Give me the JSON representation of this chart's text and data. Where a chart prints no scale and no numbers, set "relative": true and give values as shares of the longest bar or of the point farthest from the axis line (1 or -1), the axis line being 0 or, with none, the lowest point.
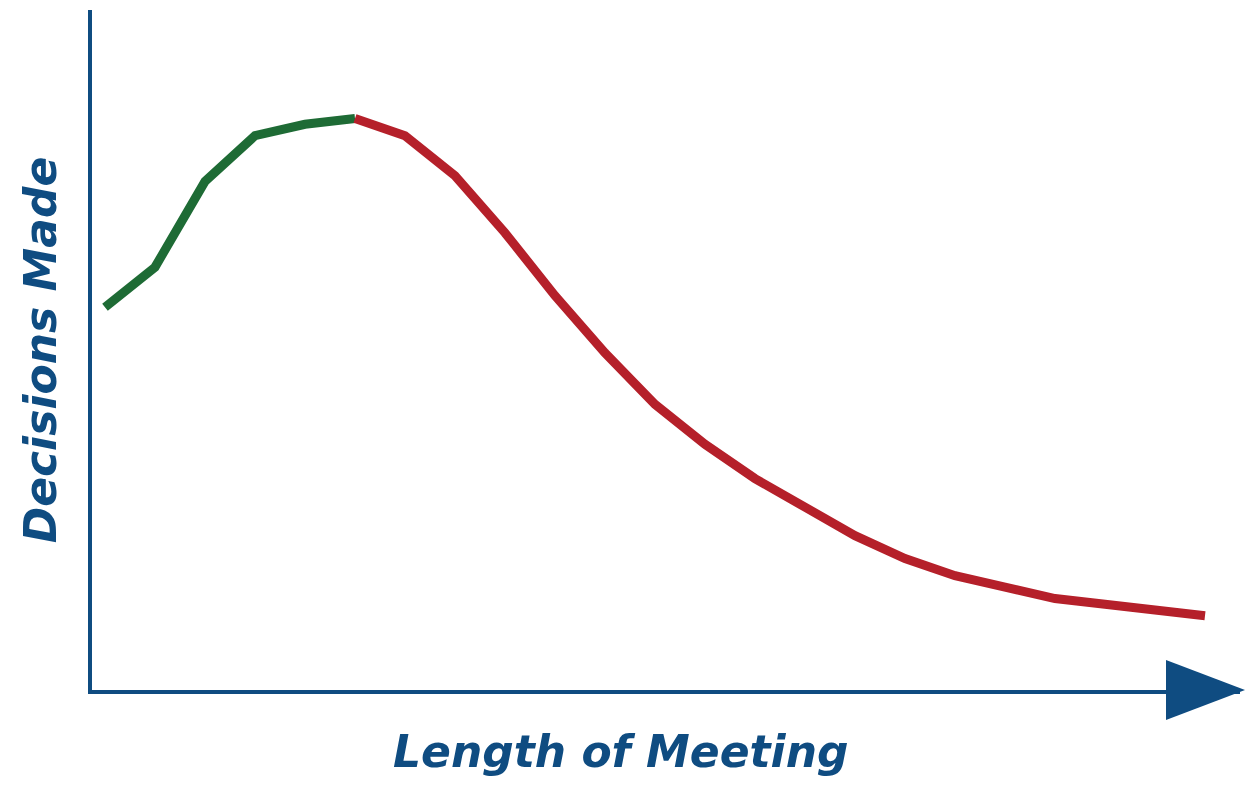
{
  "chart_data": {
    "type": "line",
    "xlabel": "Length of Meeting",
    "ylabel": "Decisions Made",
    "relative": true,
    "marker": "none",
    "line_style": "solid",
    "categories": [
      null,
      null,
      null,
      null,
      null,
      null,
      null,
      null,
      null,
      null,
      null,
      null,
      null,
      null,
      null,
      null,
      null,
      null,
      null,
      null,
      null,
      null,
      null
    ],
    "series": [
      {
        "color": "#1e6b35",
        "values": [
          0.67,
          0.74,
          0.89,
          0.97,
          0.99,
          1.0,
          null,
          null,
          null,
          null,
          null,
          null,
          null,
          null,
          null,
          null,
          null,
          null,
          null,
          null,
          null,
          null,
          null
        ]
      },
      {
        "color": "#b5202a",
        "values": [
          null,
          null,
          null,
          null,
          null,
          1.0,
          0.97,
          0.9,
          0.8,
          0.69,
          0.59,
          0.5,
          0.43,
          0.37,
          0.32,
          0.27,
          0.23,
          0.2,
          0.18,
          0.16,
          0.15,
          0.14,
          0.13
        ]
      }
    ]
  }
}
